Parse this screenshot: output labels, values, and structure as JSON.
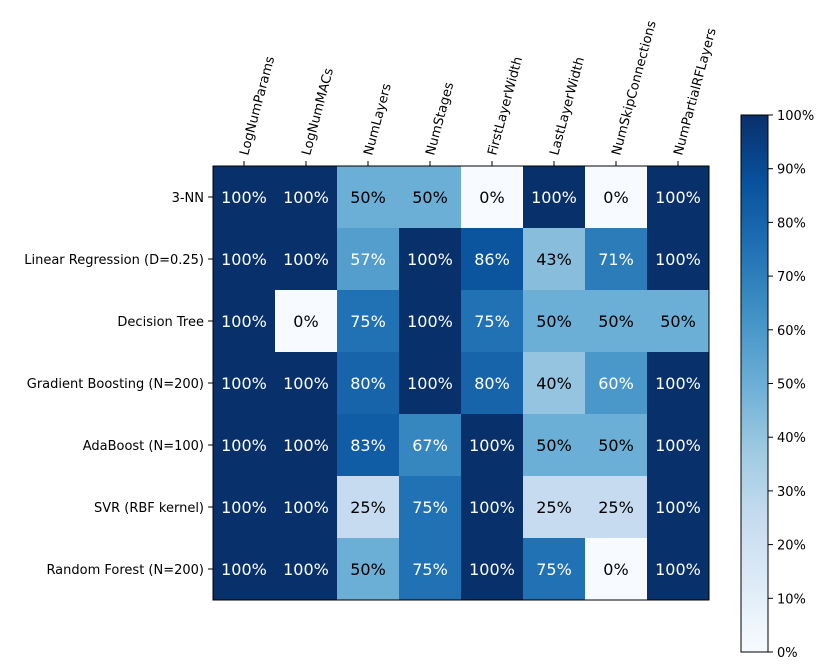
{
  "chart_data": {
    "type": "heatmap",
    "title": "",
    "xlabel": "",
    "ylabel": "",
    "columns": [
      "LogNumParams",
      "LogNumMACs",
      "NumLayers",
      "NumStages",
      "FirstLayerWidth",
      "LastLayerWidth",
      "NumSkipConnections",
      "NumPartialRFLayers"
    ],
    "rows": [
      "3-NN",
      "Linear Regression (D=0.25)",
      "Decision Tree",
      "Gradient Boosting (N=200)",
      "AdaBoost (N=100)",
      "SVR (RBF kernel)",
      "Random Forest (N=200)"
    ],
    "values": [
      [
        100,
        100,
        50,
        50,
        0,
        100,
        0,
        100
      ],
      [
        100,
        100,
        57,
        100,
        86,
        43,
        71,
        100
      ],
      [
        100,
        0,
        75,
        100,
        75,
        50,
        50,
        50
      ],
      [
        100,
        100,
        80,
        100,
        80,
        40,
        60,
        100
      ],
      [
        100,
        100,
        83,
        67,
        100,
        50,
        50,
        100
      ],
      [
        100,
        100,
        25,
        75,
        100,
        25,
        25,
        100
      ],
      [
        100,
        100,
        50,
        75,
        100,
        75,
        0,
        100
      ]
    ],
    "value_format": "percent",
    "colormap": "Blues",
    "vmin": 0,
    "vmax": 100,
    "colorbar": {
      "ticks": [
        0,
        10,
        20,
        30,
        40,
        50,
        60,
        70,
        80,
        90,
        100
      ],
      "tick_labels": [
        "0%",
        "10%",
        "20%",
        "30%",
        "40%",
        "50%",
        "60%",
        "70%",
        "80%",
        "90%",
        "100%"
      ]
    }
  }
}
